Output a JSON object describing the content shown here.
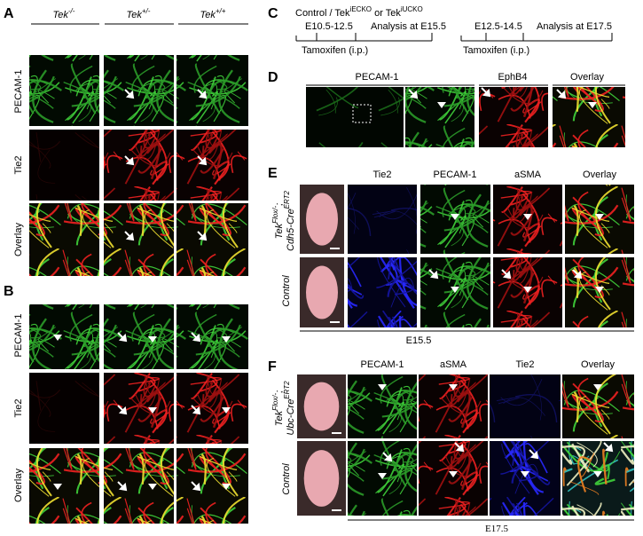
{
  "panels": {
    "A": {
      "label": "A",
      "columns": [
        {
          "base": "Tek",
          "sup": "-/-"
        },
        {
          "base": "Tek",
          "sup": "+/-"
        },
        {
          "base": "Tek",
          "sup": "+/+"
        }
      ],
      "rows": [
        "PECAM-1",
        "Tie2",
        "Overlay"
      ]
    },
    "B": {
      "label": "B",
      "rows": [
        "PECAM-1",
        "Tie2",
        "Overlay"
      ]
    },
    "C": {
      "label": "C",
      "title": {
        "prefix": "Control / Tek",
        "sup1": "iECKO",
        "middle": " or Tek",
        "sup2": "iUCKO"
      },
      "timelines": [
        {
          "window": "E10.5-12.5",
          "analysis": "Analysis at E15.5",
          "treatment": "Tamoxifen (i.p.)"
        },
        {
          "window": "E12.5-14.5",
          "analysis": "Analysis at E17.5",
          "treatment": "Tamoxifen (i.p.)"
        }
      ]
    },
    "D": {
      "label": "D",
      "columns": [
        "PECAM-1",
        "EphB4",
        "Overlay"
      ]
    },
    "E": {
      "label": "E",
      "columns": [
        "Tie2",
        "PECAM-1",
        "aSMA",
        "Overlay"
      ],
      "rows": [
        {
          "line1": "Tek",
          "line1_sup": "Flox/-",
          "line1_end": ";",
          "line2": "Cdh5-Cre",
          "line2_sup": "ERT2"
        },
        "Control"
      ],
      "stage": "E15.5"
    },
    "F": {
      "label": "F",
      "columns": [
        "PECAM-1",
        "aSMA",
        "Tie2",
        "Overlay"
      ],
      "rows": [
        {
          "line1": "Tek",
          "line1_sup": "Flox/-",
          "line1_end": ";",
          "line2": "Ubc-Cre",
          "line2_sup": "ERT2"
        },
        "Control"
      ],
      "stage": "E17.5"
    }
  }
}
